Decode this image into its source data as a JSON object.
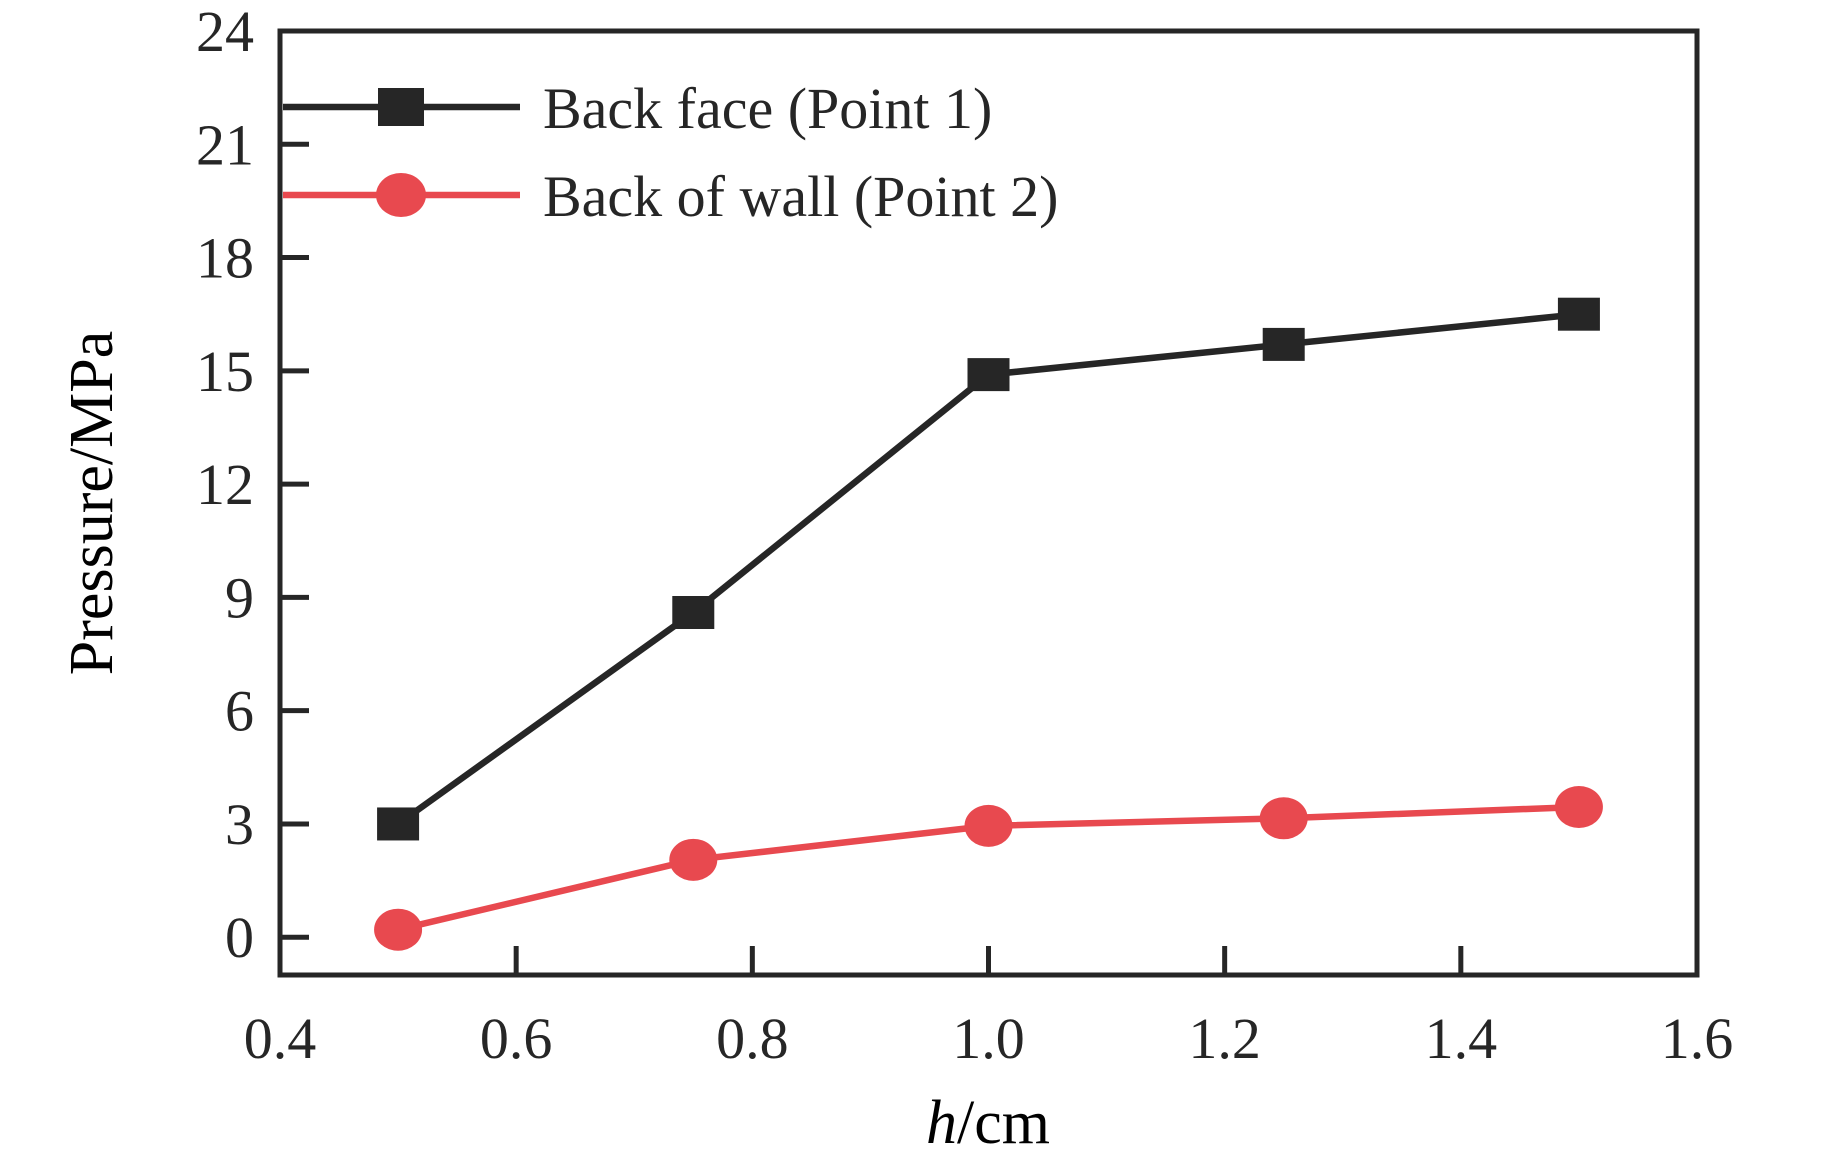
{
  "chart_data": {
    "type": "line",
    "title": "",
    "xlabel_italic": "h",
    "xlabel_rest": "/cm",
    "ylabel": "Pressure/MPa",
    "xlim": [
      0.4,
      1.6
    ],
    "ylim": [
      -1,
      24
    ],
    "x_ticks": [
      0.6,
      0.8,
      1.0,
      1.2,
      1.4
    ],
    "x_tick_labels": [
      "0.4",
      "0.6",
      "0.8",
      "1.0",
      "1.2",
      "1.4",
      "1.6"
    ],
    "x_tick_label_values": [
      0.4,
      0.6,
      0.8,
      1.0,
      1.2,
      1.4,
      1.6
    ],
    "y_ticks": [
      0,
      3,
      6,
      9,
      12,
      15,
      18,
      21,
      24
    ],
    "y_tick_labels": [
      "0",
      "3",
      "6",
      "9",
      "12",
      "15",
      "18",
      "21",
      "24"
    ],
    "grid": false,
    "legend_position": "upper-left",
    "x": [
      0.5,
      0.75,
      1.0,
      1.25,
      1.5
    ],
    "series": [
      {
        "name": "Back face (Point 1)",
        "color": "#262626",
        "marker": "square",
        "values": [
          3.0,
          8.6,
          14.9,
          15.7,
          16.5
        ]
      },
      {
        "name": "Back of wall (Point 2)",
        "color": "#e8494f",
        "marker": "circle",
        "values": [
          0.2,
          2.05,
          2.95,
          3.15,
          3.45
        ]
      }
    ]
  },
  "colors": {
    "axis": "#262626",
    "text": "#262626",
    "background": "#ffffff"
  }
}
